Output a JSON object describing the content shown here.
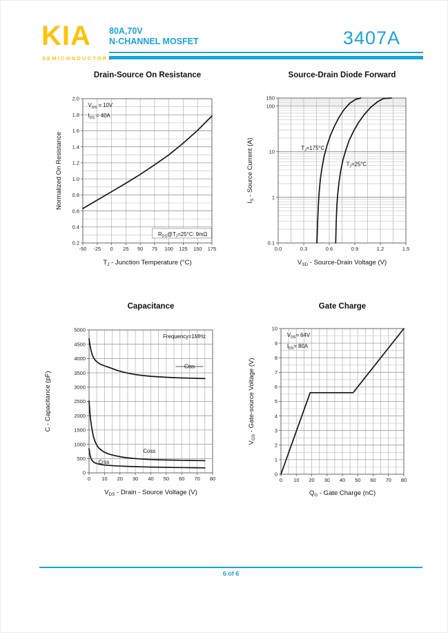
{
  "colors": {
    "accent": "#1BA3DC",
    "logo_yellow": "#FFC20E"
  },
  "header": {
    "logo_text": "KIA",
    "logo_subtext": "SEMICONDUCTORS",
    "rating_line": "80A,70V",
    "type_line": "N-CHANNEL MOSFET",
    "part_number": "3407A"
  },
  "footer": {
    "page_label": "6 of 6"
  },
  "chart_data": [
    {
      "id": "drain-source-on-resistance",
      "type": "line",
      "title": "Drain-Source On Resistance",
      "xlabel": "T~J~ - Junction Temperature (°C)",
      "ylabel": "Normalized On Resistance",
      "xscale": "linear",
      "yscale": "linear",
      "xlim": [
        -50,
        175
      ],
      "ylim": [
        0.2,
        2.0
      ],
      "xticks": [
        -50,
        -25,
        0,
        25,
        50,
        75,
        100,
        125,
        150,
        175
      ],
      "xtick_labels": [
        "-50",
        "-25",
        "0",
        "25",
        "50",
        "75",
        "100",
        "125",
        "150",
        "175"
      ],
      "yticks": [
        0.2,
        0.4,
        0.6,
        0.8,
        1.0,
        1.2,
        1.4,
        1.6,
        1.8,
        2.0
      ],
      "ytick_labels": [
        "0.2",
        "0.4",
        "0.6",
        "0.8",
        "1.0",
        "1.2",
        "1.4",
        "1.6",
        "1.8",
        "2.0"
      ],
      "x_minor_step": 25,
      "y_minor_step": 0.1,
      "grid": true,
      "legend": "none",
      "annotations": [
        {
          "text": "V~GS~ = 10V",
          "x": -41,
          "y": 1.92,
          "anchor": "start"
        },
        {
          "text": "I~DS~ = 40A",
          "x": -41,
          "y": 1.79,
          "anchor": "start"
        },
        {
          "text": "R~DS~@T~J~=25°C: 9mΩ",
          "x": 167,
          "y": 0.31,
          "anchor": "end",
          "box": true
        }
      ],
      "series": [
        {
          "name": "normalized-rds-on",
          "points": [
            [
              -50,
              0.63
            ],
            [
              -25,
              0.735
            ],
            [
              0,
              0.84
            ],
            [
              25,
              0.945
            ],
            [
              50,
              1.055
            ],
            [
              75,
              1.175
            ],
            [
              100,
              1.3
            ],
            [
              125,
              1.445
            ],
            [
              150,
              1.605
            ],
            [
              175,
              1.785
            ]
          ]
        }
      ]
    },
    {
      "id": "source-drain-diode-forward",
      "type": "line",
      "title": "Source-Drain Diode Forward",
      "xlabel": "V~SD~ - Source-Drain Voltage (V)",
      "ylabel": "I~S~ - Source Current (A)",
      "xscale": "linear",
      "yscale": "log",
      "xlim": [
        0.0,
        1.5
      ],
      "ylim": [
        0.1,
        150
      ],
      "xticks": [
        0.0,
        0.3,
        0.6,
        0.9,
        1.2,
        1.5
      ],
      "xtick_labels": [
        "0.0",
        "0.3",
        "0.6",
        "0.9",
        "1.2",
        "1.5"
      ],
      "yticks": [
        0.1,
        1,
        10,
        100,
        150
      ],
      "ytick_labels": [
        "0.1",
        "1",
        "10",
        "100",
        "150"
      ],
      "x_minor_step": 0.15,
      "grid": true,
      "legend": "none",
      "annotations": [
        {
          "text": "T~J~=175°C",
          "x": 0.27,
          "y": 12,
          "anchor": "start"
        },
        {
          "text": "T~J~=25°C",
          "x": 0.8,
          "y": 5.3,
          "anchor": "start"
        }
      ],
      "series": [
        {
          "name": "Tj=175C",
          "points": [
            [
              0.455,
              0.1
            ],
            [
              0.462,
              0.25
            ],
            [
              0.47,
              0.6
            ],
            [
              0.48,
              1.2
            ],
            [
              0.495,
              2.5
            ],
            [
              0.515,
              4.5
            ],
            [
              0.54,
              8
            ],
            [
              0.575,
              14
            ],
            [
              0.615,
              23
            ],
            [
              0.66,
              36
            ],
            [
              0.71,
              55
            ],
            [
              0.77,
              82
            ],
            [
              0.84,
              115
            ],
            [
              0.91,
              140
            ],
            [
              0.97,
              150
            ]
          ]
        },
        {
          "name": "Tj=25C",
          "points": [
            [
              0.675,
              0.1
            ],
            [
              0.682,
              0.3
            ],
            [
              0.69,
              0.7
            ],
            [
              0.7,
              1.2
            ],
            [
              0.715,
              2.2
            ],
            [
              0.735,
              3.8
            ],
            [
              0.76,
              6.5
            ],
            [
              0.795,
              11
            ],
            [
              0.835,
              18
            ],
            [
              0.885,
              28
            ],
            [
              0.945,
              44
            ],
            [
              1.01,
              65
            ],
            [
              1.09,
              95
            ],
            [
              1.17,
              125
            ],
            [
              1.24,
              147
            ],
            [
              1.33,
              150
            ]
          ]
        }
      ]
    },
    {
      "id": "capacitance",
      "type": "line",
      "title": "Capacitance",
      "xlabel": "V~DS~ - Drain - Source Voltage (V)",
      "ylabel": "C - Capacitance (pF)",
      "xscale": "linear",
      "yscale": "linear",
      "xlim": [
        0,
        80
      ],
      "ylim": [
        0,
        5000
      ],
      "xticks": [
        0,
        10,
        20,
        30,
        40,
        50,
        60,
        70,
        80
      ],
      "xtick_labels": [
        "0",
        "10",
        "20",
        "30",
        "40",
        "50",
        "60",
        "70",
        "80"
      ],
      "yticks": [
        0,
        500,
        1000,
        1500,
        2000,
        2500,
        3000,
        3500,
        4000,
        4500,
        5000
      ],
      "ytick_labels": [
        "0",
        "500",
        "1000",
        "1500",
        "2000",
        "2500",
        "3000",
        "3500",
        "4000",
        "4500",
        "5000"
      ],
      "x_minor_step": 5,
      "y_minor_step": 500,
      "grid": true,
      "legend": "none",
      "annotations": [
        {
          "text": "Frequency=1MHz",
          "x": 75.5,
          "y": 4780,
          "anchor": "end"
        },
        {
          "text": "Ciss",
          "x": 65,
          "y": 3720,
          "anchor": "middle",
          "line_x": [
            56,
            74
          ]
        },
        {
          "text": "Coss",
          "x": 39,
          "y": 770,
          "anchor": "middle"
        },
        {
          "text": "Crss",
          "x": 6,
          "y": 385,
          "anchor": "start"
        }
      ],
      "series": [
        {
          "name": "Ciss",
          "points": [
            [
              0,
              4690
            ],
            [
              0.6,
              4480
            ],
            [
              1.2,
              4300
            ],
            [
              2,
              4140
            ],
            [
              3,
              4020
            ],
            [
              4,
              3940
            ],
            [
              5,
              3890
            ],
            [
              7,
              3810
            ],
            [
              10,
              3745
            ],
            [
              14,
              3670
            ],
            [
              18,
              3590
            ],
            [
              22,
              3530
            ],
            [
              26,
              3480
            ],
            [
              30,
              3440
            ],
            [
              35,
              3405
            ],
            [
              40,
              3380
            ],
            [
              45,
              3360
            ],
            [
              50,
              3345
            ],
            [
              55,
              3332
            ],
            [
              60,
              3322
            ],
            [
              65,
              3313
            ],
            [
              70,
              3306
            ],
            [
              75,
              3300
            ]
          ]
        },
        {
          "name": "Coss",
          "points": [
            [
              0,
              2515
            ],
            [
              0.5,
              2150
            ],
            [
              1,
              1880
            ],
            [
              1.5,
              1660
            ],
            [
              2,
              1490
            ],
            [
              3,
              1240
            ],
            [
              4,
              1080
            ],
            [
              5,
              970
            ],
            [
              6,
              890
            ],
            [
              8,
              790
            ],
            [
              10,
              720
            ],
            [
              13,
              655
            ],
            [
              16,
              610
            ],
            [
              20,
              565
            ],
            [
              24,
              532
            ],
            [
              28,
              508
            ],
            [
              32,
              490
            ],
            [
              36,
              477
            ],
            [
              40,
              467
            ],
            [
              45,
              457
            ],
            [
              50,
              450
            ],
            [
              55,
              444
            ],
            [
              60,
              439
            ],
            [
              65,
              435
            ],
            [
              70,
              431
            ],
            [
              75,
              428
            ]
          ]
        },
        {
          "name": "Crss",
          "points": [
            [
              0,
              845
            ],
            [
              0.5,
              660
            ],
            [
              1,
              545
            ],
            [
              1.5,
              475
            ],
            [
              2,
              430
            ],
            [
              3,
              375
            ],
            [
              4,
              345
            ],
            [
              5,
              325
            ],
            [
              6,
              310
            ],
            [
              8,
              290
            ],
            [
              10,
              275
            ],
            [
              13,
              260
            ],
            [
              16,
              249
            ],
            [
              20,
              237
            ],
            [
              25,
              226
            ],
            [
              30,
              217
            ],
            [
              35,
              210
            ],
            [
              40,
              203
            ],
            [
              45,
              198
            ],
            [
              50,
              193
            ],
            [
              55,
              189
            ],
            [
              60,
              185
            ],
            [
              65,
              181
            ],
            [
              70,
              178
            ],
            [
              75,
              175
            ]
          ]
        }
      ]
    },
    {
      "id": "gate-charge",
      "type": "line",
      "title": "Gate Charge",
      "xlabel": "Q~G~ - Gate Charge (nC)",
      "ylabel": "V~GS~ - Gate-source Voltage (V)",
      "xscale": "linear",
      "yscale": "linear",
      "xlim": [
        0,
        80
      ],
      "ylim": [
        0,
        10
      ],
      "xticks": [
        0,
        10,
        20,
        30,
        40,
        50,
        60,
        70,
        80
      ],
      "xtick_labels": [
        "0",
        "10",
        "20",
        "30",
        "40",
        "50",
        "60",
        "70",
        "80"
      ],
      "yticks": [
        0,
        1,
        2,
        3,
        4,
        5,
        6,
        7,
        8,
        9,
        10
      ],
      "ytick_labels": [
        "0",
        "1",
        "2",
        "3",
        "4",
        "5",
        "6",
        "7",
        "8",
        "9",
        "10"
      ],
      "x_minor_step": 5,
      "y_minor_step": 0.5,
      "grid": true,
      "legend": "none",
      "annotations": [
        {
          "text": "V~DS~= 64V",
          "x": 4,
          "y": 9.55,
          "anchor": "start"
        },
        {
          "text": "I~DS~= 80A",
          "x": 4,
          "y": 8.8,
          "anchor": "start"
        }
      ],
      "series": [
        {
          "name": "gate-charge-curve",
          "points": [
            [
              0,
              0
            ],
            [
              19,
              5.6
            ],
            [
              47,
              5.6
            ],
            [
              80,
              10
            ]
          ]
        }
      ]
    }
  ]
}
